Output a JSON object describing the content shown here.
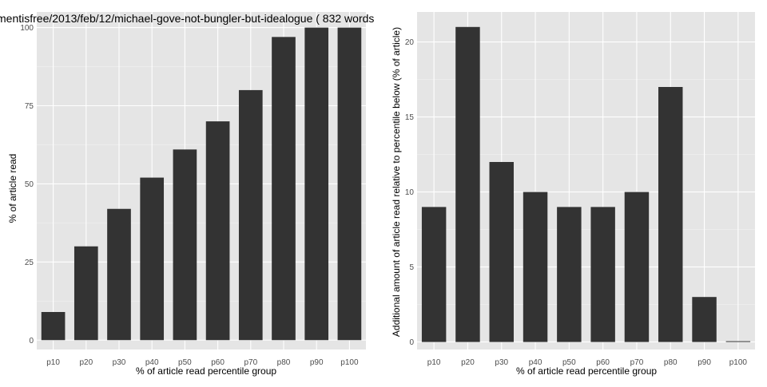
{
  "chart_data": [
    {
      "type": "bar",
      "title": "mentisfree/2013/feb/12/michael-gove-not-bungler-but-idealogue ( 832 words",
      "xlabel": "% of article read percentile group",
      "ylabel": "% of article read",
      "categories": [
        "p10",
        "p20",
        "p30",
        "p40",
        "p50",
        "p60",
        "p70",
        "p80",
        "p90",
        "p100"
      ],
      "values": [
        9,
        30,
        42,
        52,
        61,
        70,
        80,
        97,
        100,
        100
      ],
      "ylim": [
        -3,
        105
      ],
      "yticks": [
        0,
        25,
        50,
        75,
        100
      ],
      "ytick_labels": [
        "0",
        "25",
        "50",
        "75",
        "100"
      ],
      "grid": true,
      "bar_color": "#333333",
      "panel_color": "#e5e5e5",
      "grid_color": "#ffffff"
    },
    {
      "type": "bar",
      "title": "",
      "xlabel": "% of article read percentile group",
      "ylabel": "Additional amount of article read relative to percentile below (% of article)",
      "categories": [
        "p10",
        "p20",
        "p30",
        "p40",
        "p50",
        "p60",
        "p70",
        "p80",
        "p90",
        "p100"
      ],
      "values": [
        9,
        21,
        12,
        10,
        9,
        9,
        10,
        17,
        3,
        0
      ],
      "ylim": [
        -0.5,
        22
      ],
      "yticks": [
        0,
        5,
        10,
        15,
        20
      ],
      "ytick_labels": [
        "0",
        "5",
        "10",
        "15",
        "20"
      ],
      "grid": true,
      "bar_color": "#333333",
      "panel_color": "#e5e5e5",
      "grid_color": "#ffffff"
    }
  ]
}
